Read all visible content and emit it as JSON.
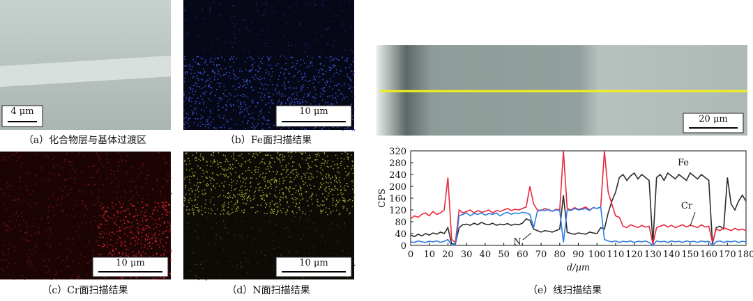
{
  "panels": [
    {
      "caption": "（a）化合物层与基体过渡区",
      "scale": "4 μm"
    },
    {
      "caption": "（b）Fe面扫描结果",
      "scale": "10 μm"
    },
    {
      "caption": "（c）Cr面扫描结果",
      "scale": "10 μm"
    },
    {
      "caption": "（d）N面扫描结果",
      "scale": "10 μm"
    },
    {
      "caption": "（e）线扫描结果",
      "scale": "20 μm"
    }
  ],
  "chart_data": {
    "type": "line",
    "xlabel": "d/μm",
    "ylabel": "CPS",
    "x": [
      0,
      2,
      4,
      6,
      8,
      10,
      12,
      14,
      16,
      18,
      20,
      22,
      24,
      26,
      28,
      30,
      32,
      34,
      36,
      38,
      40,
      42,
      44,
      46,
      48,
      50,
      52,
      54,
      56,
      58,
      60,
      62,
      64,
      66,
      68,
      70,
      72,
      74,
      76,
      78,
      80,
      82,
      84,
      86,
      88,
      90,
      92,
      94,
      96,
      98,
      100,
      102,
      104,
      106,
      108,
      110,
      112,
      114,
      116,
      118,
      120,
      122,
      124,
      126,
      128,
      130,
      132,
      134,
      136,
      138,
      140,
      142,
      144,
      146,
      148,
      150,
      152,
      154,
      156,
      158,
      160,
      162,
      164,
      166,
      168,
      170,
      172,
      174,
      176,
      178,
      180
    ],
    "series": [
      {
        "name": "Fe",
        "color": "#2b2b2b",
        "values": [
          35,
          30,
          38,
          32,
          40,
          35,
          42,
          38,
          45,
          40,
          60,
          5,
          5,
          60,
          70,
          72,
          68,
          75,
          70,
          78,
          72,
          70,
          75,
          68,
          72,
          70,
          74,
          68,
          72,
          70,
          75,
          90,
          85,
          55,
          50,
          45,
          50,
          48,
          45,
          50,
          55,
          170,
          45,
          40,
          38,
          42,
          40,
          38,
          45,
          42,
          40,
          60,
          55,
          110,
          150,
          180,
          230,
          240,
          220,
          235,
          245,
          225,
          240,
          230,
          220,
          5,
          230,
          240,
          220,
          245,
          235,
          225,
          240,
          230,
          220,
          245,
          235,
          225,
          240,
          230,
          220,
          5,
          60,
          65,
          55,
          230,
          140,
          120,
          150,
          170,
          150
        ]
      },
      {
        "name": "Cr",
        "color": "#e8283c",
        "values": [
          90,
          100,
          95,
          105,
          110,
          100,
          115,
          105,
          110,
          120,
          230,
          20,
          10,
          120,
          110,
          115,
          120,
          110,
          118,
          112,
          115,
          120,
          110,
          118,
          115,
          120,
          125,
          118,
          122,
          120,
          125,
          130,
          200,
          140,
          120,
          118,
          125,
          120,
          115,
          122,
          120,
          320,
          125,
          120,
          128,
          122,
          125,
          130,
          120,
          128,
          125,
          130,
          320,
          180,
          140,
          100,
          95,
          65,
          60,
          70,
          65,
          60,
          68,
          62,
          65,
          5,
          60,
          65,
          70,
          62,
          68,
          60,
          65,
          70,
          62,
          68,
          65,
          60,
          70,
          62,
          65,
          10,
          55,
          50,
          60,
          55,
          50,
          58,
          52,
          55,
          50
        ]
      },
      {
        "name": "N",
        "color": "#2f7de1",
        "values": [
          12,
          10,
          15,
          12,
          10,
          14,
          12,
          15,
          10,
          14,
          20,
          0,
          0,
          100,
          105,
          110,
          100,
          108,
          105,
          110,
          102,
          108,
          105,
          110,
          100,
          108,
          112,
          105,
          110,
          108,
          112,
          110,
          105,
          60,
          115,
          120,
          118,
          122,
          115,
          120,
          118,
          10,
          120,
          118,
          125,
          120,
          122,
          125,
          118,
          128,
          125,
          130,
          20,
          15,
          12,
          15,
          10,
          14,
          12,
          15,
          10,
          14,
          12,
          15,
          10,
          0,
          15,
          12,
          14,
          10,
          15,
          12,
          14,
          10,
          15,
          12,
          14,
          10,
          15,
          12,
          14,
          0,
          12,
          15,
          10,
          14,
          12,
          15,
          10,
          14,
          12
        ]
      }
    ],
    "xlim": [
      0,
      180
    ],
    "xticks": [
      0,
      10,
      20,
      30,
      40,
      50,
      60,
      70,
      80,
      90,
      100,
      110,
      120,
      130,
      140,
      150,
      160,
      170,
      180
    ],
    "ylim": [
      0,
      320
    ],
    "yticks": [
      0,
      40,
      80,
      120,
      160,
      200,
      240,
      280,
      320
    ]
  }
}
